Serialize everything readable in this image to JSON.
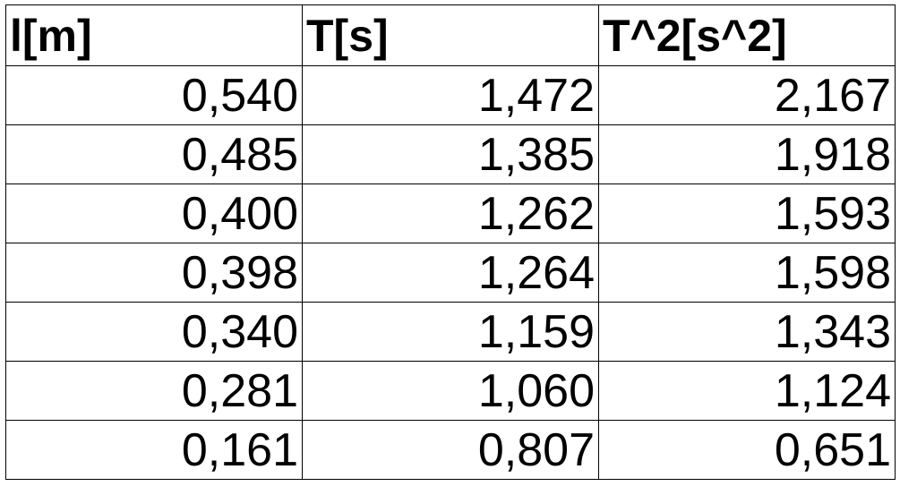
{
  "table": {
    "headers": [
      "l[m]",
      "T[s]",
      "T^2[s^2]"
    ],
    "rows": [
      [
        "0,540",
        "1,472",
        "2,167"
      ],
      [
        "0,485",
        "1,385",
        "1,918"
      ],
      [
        "0,400",
        "1,262",
        "1,593"
      ],
      [
        "0,398",
        "1,264",
        "1,598"
      ],
      [
        "0,340",
        "1,159",
        "1,343"
      ],
      [
        "0,281",
        "1,060",
        "1,124"
      ],
      [
        "0,161",
        "0,807",
        "0,651"
      ]
    ]
  }
}
